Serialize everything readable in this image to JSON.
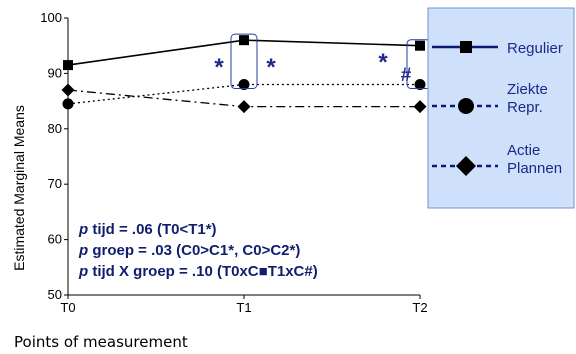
{
  "chart_data": {
    "type": "line",
    "title": "",
    "ylabel": "Estimated Marginal Means",
    "xlabel": "Points of measurement",
    "categories": [
      "T0",
      "T1",
      "T2"
    ],
    "ylim": [
      50,
      100
    ],
    "yticks": [
      50,
      60,
      70,
      80,
      90,
      100
    ],
    "grid": false,
    "legend_position": "right",
    "series": [
      {
        "name": "Regulier",
        "values": [
          91.5,
          96,
          95
        ],
        "line": "solid",
        "marker": "square",
        "color": "#0b1a73"
      },
      {
        "name": "Ziekte Repr.",
        "values": [
          84.5,
          88,
          88
        ],
        "line": "dotted",
        "marker": "circle",
        "color": "#0b1a73"
      },
      {
        "name": "Actie Plannen",
        "values": [
          87,
          84,
          84
        ],
        "line": "dashdot",
        "marker": "diamond",
        "color": "#0b1a73"
      }
    ],
    "annotations": {
      "marks": [
        {
          "text": "*"
        },
        {
          "text": "*"
        },
        {
          "text": "*"
        },
        {
          "text": "#"
        }
      ],
      "stats": [
        {
          "italic": "p",
          "text": " tijd = .06 (T0<T1*)"
        },
        {
          "italic": "p",
          "text": " groep = .03 (C0>C1*, C0>C2*)"
        },
        {
          "italic": "p",
          "text": " tijd X groep = .10 (T0xC■T1xC#)"
        }
      ]
    }
  },
  "legend": {
    "background": "#cfe0fb",
    "border": "#6f93cf",
    "items": [
      {
        "lines": [
          "Regulier"
        ]
      },
      {
        "lines": [
          "Ziekte",
          "Repr."
        ]
      },
      {
        "lines": [
          "Actie",
          "Plannen"
        ]
      }
    ]
  }
}
